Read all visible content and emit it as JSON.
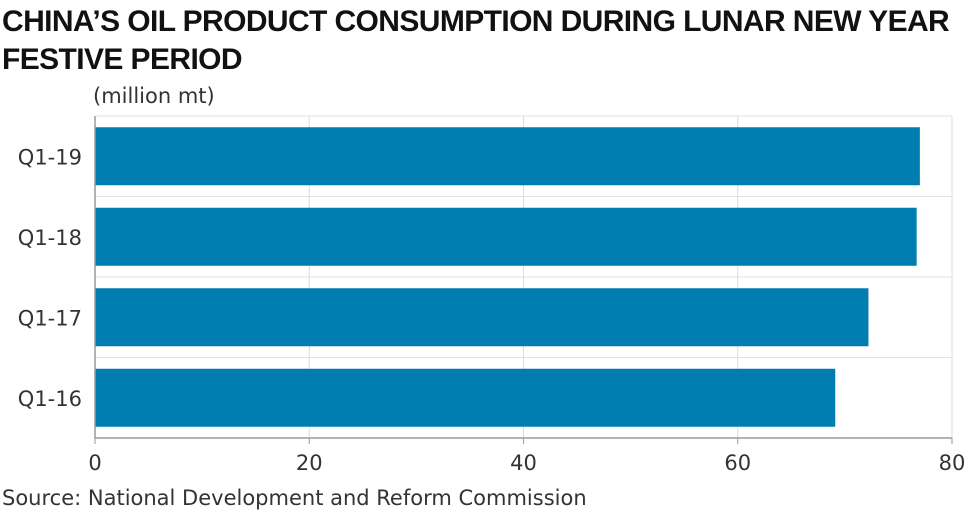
{
  "chart_data": {
    "type": "bar",
    "orientation": "horizontal",
    "title": "CHINA’S OIL PRODUCT CONSUMPTION DURING LUNAR NEW YEAR FESTIVE PERIOD",
    "unit_label": "(million mt)",
    "categories": [
      "Q1-19",
      "Q1-18",
      "Q1-17",
      "Q1-16"
    ],
    "values": [
      77.0,
      76.7,
      72.2,
      69.1
    ],
    "xlim": [
      0,
      80
    ],
    "x_ticks": [
      "0",
      "20",
      "40",
      "60",
      "80"
    ],
    "grid": true,
    "bar_color": "#007db0",
    "source": "Source: National Development and Reform Commission"
  }
}
